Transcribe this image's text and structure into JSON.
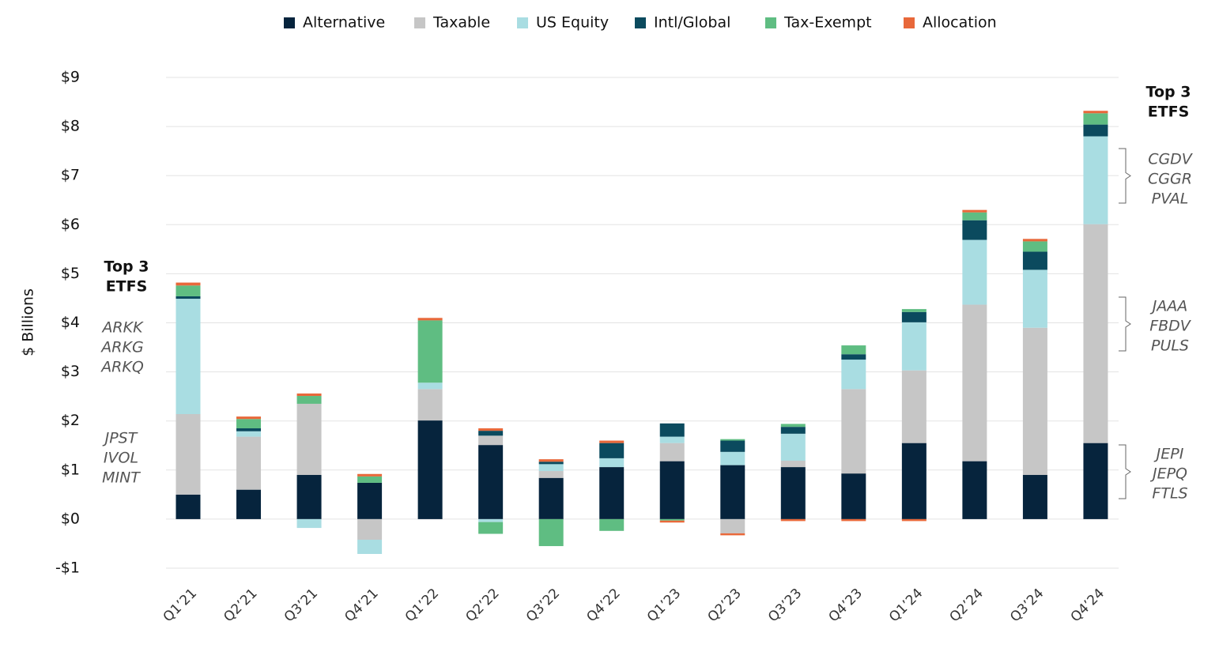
{
  "chart_data": {
    "type": "stacked_bar",
    "y_label": "$ Billions",
    "categories": [
      "Q1’21",
      "Q2’21",
      "Q3’21",
      "Q4’21",
      "Q1’22",
      "Q2’22",
      "Q3’22",
      "Q4’22",
      "Q1’23",
      "Q2’23",
      "Q3’23",
      "Q4’23",
      "Q1’24",
      "Q2’24",
      "Q3’24",
      "Q4’24"
    ],
    "series": [
      {
        "name": "Alternative",
        "color": "#06243d",
        "values": [
          0.5,
          0.6,
          0.9,
          0.74,
          2.01,
          1.51,
          0.84,
          1.06,
          1.18,
          1.1,
          1.06,
          0.93,
          1.55,
          1.18,
          0.9,
          1.55
        ]
      },
      {
        "name": "Taxable",
        "color": "#c6c6c6",
        "values": [
          1.64,
          1.08,
          1.45,
          -0.42,
          0.64,
          0.19,
          0.14,
          0,
          0.37,
          -0.29,
          0.13,
          1.72,
          1.48,
          3.19,
          3.0,
          4.46
        ]
      },
      {
        "name": "US Equity",
        "color": "#a9dde2",
        "values": [
          2.35,
          0.11,
          -0.18,
          -0.29,
          0.13,
          -0.06,
          0.14,
          0.18,
          0.13,
          0.27,
          0.55,
          0.6,
          0.98,
          1.32,
          1.18,
          1.79
        ]
      },
      {
        "name": "Intl/Global",
        "color": "#0b4a5e",
        "values": [
          0.05,
          0.06,
          0,
          0,
          0,
          0.1,
          0.05,
          0.31,
          0.27,
          0.23,
          0.14,
          0.11,
          0.21,
          0.4,
          0.37,
          0.24
        ]
      },
      {
        "name": "Tax-Exempt",
        "color": "#5fbd82",
        "values": [
          0.22,
          0.19,
          0.16,
          0.13,
          1.27,
          -0.24,
          -0.55,
          -0.24,
          -0.03,
          0.03,
          0.06,
          0.18,
          0.06,
          0.16,
          0.21,
          0.23
        ]
      },
      {
        "name": "Allocation",
        "color": "#e8683a",
        "values": [
          0.06,
          0.05,
          0.05,
          0.05,
          0.05,
          0.05,
          0.05,
          0.05,
          -0.04,
          -0.04,
          -0.04,
          -0.04,
          -0.04,
          0.05,
          0.05,
          0.05
        ]
      }
    ],
    "ylim": [
      -1,
      9
    ],
    "yticks": [
      {
        "value": -1,
        "label": "-$1"
      },
      {
        "value": 0,
        "label": "$0"
      },
      {
        "value": 1,
        "label": "$1"
      },
      {
        "value": 2,
        "label": "$2"
      },
      {
        "value": 3,
        "label": "$3"
      },
      {
        "value": 4,
        "label": "$4"
      },
      {
        "value": 5,
        "label": "$5"
      },
      {
        "value": 6,
        "label": "$6"
      },
      {
        "value": 7,
        "label": "$7"
      },
      {
        "value": 8,
        "label": "$8"
      },
      {
        "value": 9,
        "label": "$9"
      }
    ],
    "grid": true,
    "legend": "top",
    "annotations": [
      {
        "lines": [
          "Top 3",
          "ETFS"
        ]
      },
      {
        "lines": [
          "ARKK",
          "ARKG",
          "ARKQ"
        ]
      },
      {
        "lines": [
          "JPST",
          "IVOL",
          "MINT"
        ]
      },
      {
        "lines": [
          "Top 3",
          "ETFS"
        ]
      },
      {
        "lines": [
          "CGDV",
          "CGGR",
          "PVAL"
        ]
      },
      {
        "lines": [
          "JAAA",
          "FBDV",
          "PULS"
        ]
      },
      {
        "lines": [
          "JEPI",
          "JEPQ",
          "FTLS"
        ]
      }
    ]
  }
}
